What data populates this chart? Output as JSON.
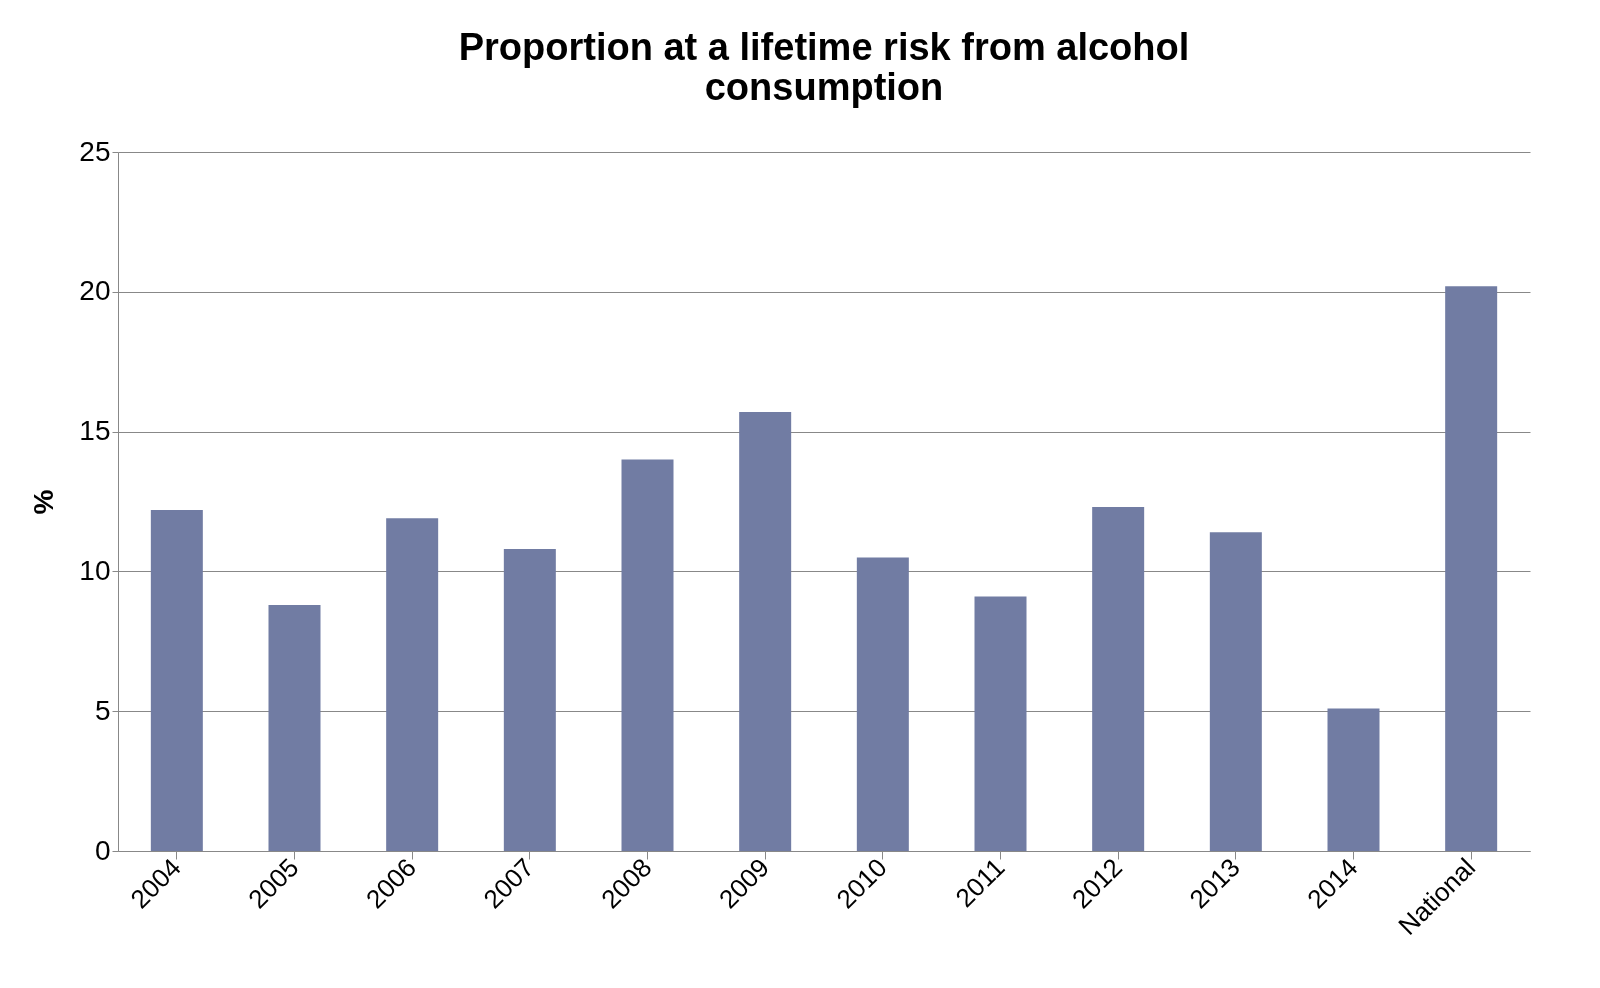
{
  "chart_data": {
    "type": "bar",
    "title": [
      "Proportion at a lifetime risk from alcohol",
      "consumption"
    ],
    "ylabel": "%",
    "categories": [
      "2004",
      "2005",
      "2006",
      "2007",
      "2008",
      "2009",
      "2010",
      "2011",
      "2012",
      "2013",
      "2014",
      "National"
    ],
    "values": [
      12.2,
      8.8,
      11.9,
      10.8,
      14.0,
      15.7,
      10.5,
      9.1,
      12.3,
      11.4,
      5.1,
      20.2
    ],
    "color": "#717ca3",
    "ylim": [
      0,
      25
    ],
    "yticks": [
      0,
      5,
      10,
      15,
      20,
      25
    ],
    "grid": "y"
  }
}
